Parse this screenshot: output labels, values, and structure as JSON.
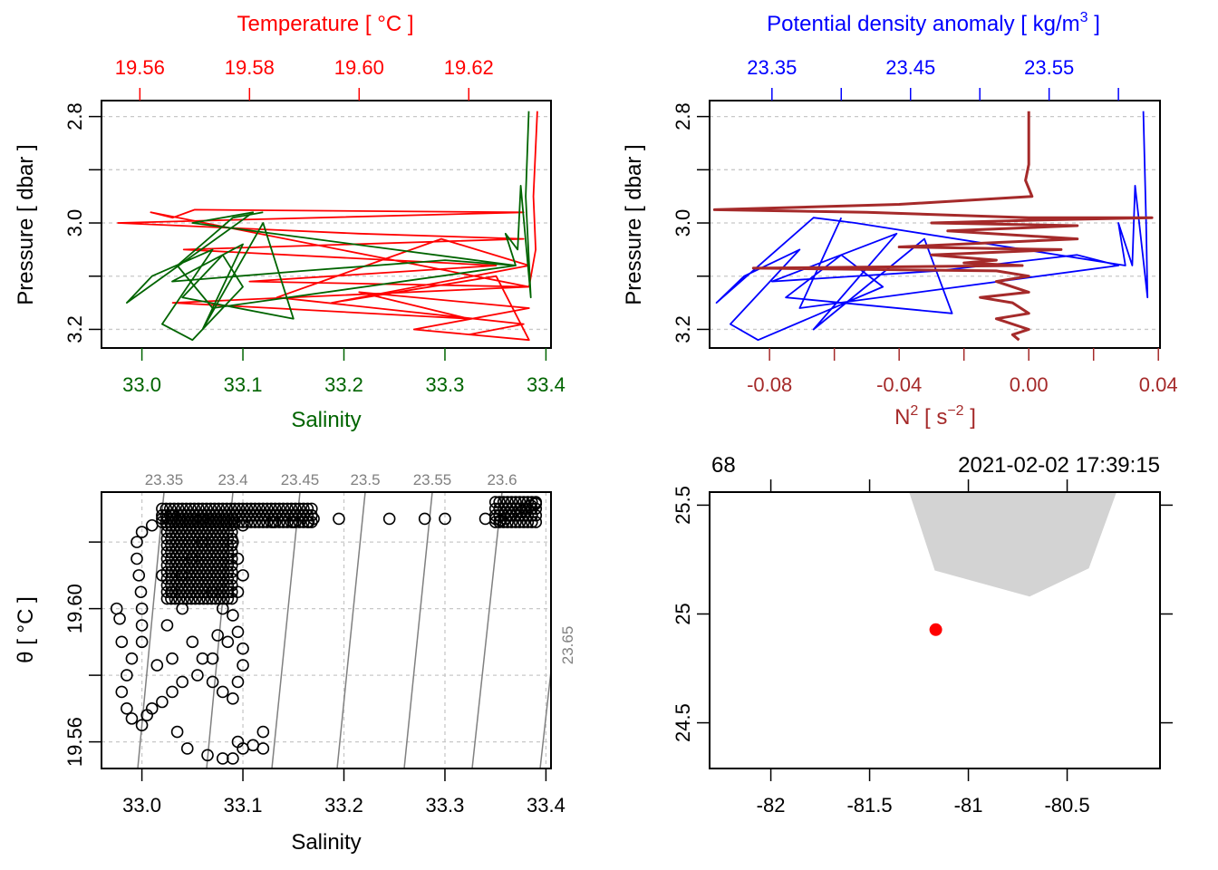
{
  "chart_data": [
    {
      "id": "ts_profile",
      "type": "line",
      "title": "",
      "top_axis": {
        "label": "Temperature [ °C ]",
        "color": "#ff0000",
        "ticks": [
          "19.56",
          "19.58",
          "19.60",
          "19.62"
        ],
        "tick_values": [
          19.56,
          19.58,
          19.6,
          19.62
        ],
        "range": [
          19.553,
          19.635
        ]
      },
      "bottom_axis": {
        "label": "Salinity",
        "color": "#006400",
        "ticks": [
          "33.0",
          "33.1",
          "33.2",
          "33.3",
          "33.4"
        ],
        "tick_values": [
          33.0,
          33.1,
          33.2,
          33.3,
          33.4
        ],
        "range": [
          32.96,
          33.405
        ]
      },
      "left_axis": {
        "label": "Pressure [ dbar ]",
        "ticks": [
          "2.8",
          "",
          "3.0",
          "",
          "3.2"
        ],
        "tick_values": [
          2.8,
          2.9,
          3.0,
          3.1,
          3.2
        ],
        "range": [
          2.77,
          3.235
        ],
        "reversed": true
      },
      "grid": true,
      "series": [
        {
          "name": "Temperature",
          "color": "#ff0000",
          "points": [
            [
              19.6325,
              2.79
            ],
            [
              19.6318,
              2.95
            ],
            [
              19.6322,
              3.05
            ],
            [
              19.631,
              3.12
            ],
            [
              19.562,
              2.98
            ],
            [
              19.566,
              2.99
            ],
            [
              19.57,
              2.975
            ],
            [
              19.63,
              2.98
            ],
            [
              19.556,
              3.0
            ],
            [
              19.6,
              3.02
            ],
            [
              19.63,
              3.03
            ],
            [
              19.568,
              3.05
            ],
            [
              19.625,
              3.08
            ],
            [
              19.58,
              3.11
            ],
            [
              19.631,
              3.12
            ],
            [
              19.566,
              3.15
            ],
            [
              19.62,
              3.18
            ],
            [
              19.6,
              3.13
            ],
            [
              19.631,
              3.16
            ],
            [
              19.61,
              3.2
            ],
            [
              19.631,
              3.22
            ],
            [
              19.625,
              3.1
            ],
            [
              19.595,
              3.15
            ],
            [
              19.631,
              3.08
            ],
            [
              19.615,
              3.03
            ],
            [
              19.585,
              3.14
            ],
            [
              19.63,
              3.19
            ],
            [
              19.62,
              3.21
            ]
          ]
        },
        {
          "name": "Salinity",
          "color": "#006400",
          "points": [
            [
              33.383,
              2.79
            ],
            [
              33.38,
              2.95
            ],
            [
              33.385,
              3.14
            ],
            [
              33.375,
              2.93
            ],
            [
              33.372,
              3.05
            ],
            [
              33.36,
              3.02
            ],
            [
              33.37,
              3.08
            ],
            [
              33.05,
              3.0
            ],
            [
              33.11,
              2.98
            ],
            [
              32.985,
              3.15
            ],
            [
              33.01,
              3.1
            ],
            [
              33.07,
              3.05
            ],
            [
              33.02,
              3.19
            ],
            [
              33.05,
              3.22
            ],
            [
              33.1,
              3.12
            ],
            [
              33.08,
              3.06
            ],
            [
              33.04,
              3.14
            ],
            [
              33.15,
              3.18
            ],
            [
              33.12,
              3.0
            ],
            [
              33.06,
              3.2
            ],
            [
              33.1,
              3.04
            ],
            [
              33.03,
              3.11
            ],
            [
              33.16,
              3.09
            ],
            [
              33.3,
              3.07
            ],
            [
              33.37,
              3.08
            ],
            [
              33.07,
              3.16
            ],
            [
              33.035,
              3.08
            ],
            [
              33.09,
              2.99
            ],
            [
              33.12,
              2.98
            ]
          ]
        }
      ]
    },
    {
      "id": "density_n2_profile",
      "type": "line",
      "title": "",
      "top_axis": {
        "label": "Potential density anomaly [ kg/m^3 ]",
        "color": "#0000ff",
        "ticks": [
          "23.35",
          "",
          "23.45",
          "",
          "23.55",
          ""
        ],
        "tick_values": [
          23.35,
          23.4,
          23.45,
          23.5,
          23.55,
          23.6
        ],
        "range": [
          23.305,
          23.63
        ]
      },
      "bottom_axis": {
        "label": "N^2 [ s^-2 ]",
        "color": "#a52a2a",
        "ticks": [
          "-0.08",
          "",
          "-0.04",
          "",
          "0.00",
          "",
          "0.04"
        ],
        "tick_values": [
          -0.08,
          -0.06,
          -0.04,
          -0.02,
          0.0,
          0.02,
          0.04
        ],
        "range": [
          -0.0985,
          0.0405
        ]
      },
      "left_axis": {
        "label": "Pressure [ dbar ]",
        "ticks": [
          "2.8",
          "",
          "3.0",
          "",
          "3.2"
        ],
        "tick_values": [
          2.8,
          2.9,
          3.0,
          3.1,
          3.2
        ],
        "range": [
          2.77,
          3.235
        ],
        "reversed": true
      },
      "grid": true,
      "series": [
        {
          "name": "Potential density anomaly",
          "color": "#0000ff",
          "points": [
            [
              23.618,
              2.79
            ],
            [
              23.62,
              3.0
            ],
            [
              23.621,
              3.14
            ],
            [
              23.612,
              2.93
            ],
            [
              23.61,
              3.08
            ],
            [
              23.6,
              3.0
            ],
            [
              23.605,
              3.08
            ],
            [
              23.41,
              3.0
            ],
            [
              23.38,
              2.99
            ],
            [
              23.31,
              3.15
            ],
            [
              23.33,
              3.1
            ],
            [
              23.37,
              3.05
            ],
            [
              23.32,
              3.19
            ],
            [
              23.34,
              3.22
            ],
            [
              23.43,
              3.12
            ],
            [
              23.4,
              3.06
            ],
            [
              23.36,
              3.14
            ],
            [
              23.48,
              3.17
            ],
            [
              23.46,
              3.03
            ],
            [
              23.38,
              3.2
            ],
            [
              23.44,
              3.02
            ],
            [
              23.35,
              3.11
            ],
            [
              23.47,
              3.09
            ],
            [
              23.57,
              3.06
            ],
            [
              23.6,
              3.08
            ],
            [
              23.37,
              3.16
            ],
            [
              23.4,
              2.99
            ]
          ]
        },
        {
          "name": "N2",
          "color": "#a52a2a",
          "points": [
            [
              0.0,
              2.79
            ],
            [
              0.0,
              2.89
            ],
            [
              -0.001,
              2.92
            ],
            [
              0.001,
              2.95
            ],
            [
              -0.04,
              2.965
            ],
            [
              -0.097,
              2.975
            ],
            [
              -0.05,
              2.98
            ],
            [
              0.0,
              2.99
            ],
            [
              0.038,
              2.99
            ],
            [
              0.0,
              2.995
            ],
            [
              -0.03,
              3.0
            ],
            [
              0.015,
              3.005
            ],
            [
              -0.025,
              3.015
            ],
            [
              0.015,
              3.03
            ],
            [
              -0.04,
              3.045
            ],
            [
              0.01,
              3.05
            ],
            [
              -0.03,
              3.06
            ],
            [
              -0.01,
              3.07
            ],
            [
              -0.02,
              3.075
            ],
            [
              -0.002,
              3.08
            ],
            [
              -0.085,
              3.085
            ],
            [
              -0.01,
              3.09
            ],
            [
              0.0,
              3.1
            ],
            [
              -0.01,
              3.11
            ],
            [
              0.0,
              3.13
            ],
            [
              -0.015,
              3.14
            ],
            [
              -0.005,
              3.15
            ],
            [
              0.0,
              3.17
            ],
            [
              -0.01,
              3.18
            ],
            [
              0.0,
              3.2
            ],
            [
              -0.005,
              3.21
            ],
            [
              -0.003,
              3.22
            ]
          ]
        }
      ]
    },
    {
      "id": "ts_diagram",
      "type": "scatter",
      "title": "",
      "xlabel": "Salinity",
      "ylabel": "θ [ °C ]",
      "x_ticks": [
        "33.0",
        "33.1",
        "33.2",
        "33.3",
        "33.4"
      ],
      "x_tick_values": [
        33.0,
        33.1,
        33.2,
        33.3,
        33.4
      ],
      "y_ticks": [
        "19.56",
        "",
        "19.60",
        ""
      ],
      "y_tick_values": [
        19.56,
        19.58,
        19.6,
        19.62
      ],
      "xlim": [
        32.96,
        33.405
      ],
      "ylim": [
        19.552,
        19.635
      ],
      "grid": true,
      "isopycnals": {
        "color": "#808080",
        "labels": [
          "23.35",
          "23.4",
          "23.45",
          "23.5",
          "23.55",
          "23.6",
          "23.65"
        ],
        "values": [
          23.35,
          23.4,
          23.45,
          23.5,
          23.55,
          23.6,
          23.65
        ]
      },
      "series": [
        {
          "name": "CTD samples",
          "marker": "open-circle",
          "color": "#000000",
          "points": [
            [
              33.375,
              19.629
            ],
            [
              33.38,
              19.63
            ],
            [
              33.385,
              19.631
            ],
            [
              33.39,
              19.6315
            ],
            [
              33.35,
              19.627
            ],
            [
              33.355,
              19.6265
            ],
            [
              33.36,
              19.627
            ],
            [
              33.365,
              19.628
            ],
            [
              33.37,
              19.628
            ],
            [
              33.34,
              19.627
            ],
            [
              33.3,
              19.627
            ],
            [
              33.28,
              19.627
            ],
            [
              33.245,
              19.627
            ],
            [
              33.195,
              19.627
            ],
            [
              33.17,
              19.627
            ],
            [
              33.165,
              19.626
            ],
            [
              33.15,
              19.626
            ],
            [
              33.13,
              19.626
            ],
            [
              33.1,
              19.625
            ],
            [
              33.09,
              19.627
            ],
            [
              33.06,
              19.627
            ],
            [
              33.03,
              19.628
            ],
            [
              33.02,
              19.627
            ],
            [
              33.01,
              19.625
            ],
            [
              33.0,
              19.623
            ],
            [
              32.995,
              19.62
            ],
            [
              32.995,
              19.615
            ],
            [
              32.997,
              19.61
            ],
            [
              32.999,
              19.605
            ],
            [
              33.0,
              19.6
            ],
            [
              33.0,
              19.595
            ],
            [
              33.0,
              19.59
            ],
            [
              32.99,
              19.585
            ],
            [
              32.985,
              19.58
            ],
            [
              32.98,
              19.575
            ],
            [
              32.985,
              19.57
            ],
            [
              32.99,
              19.567
            ],
            [
              33.0,
              19.565
            ],
            [
              33.01,
              19.57
            ],
            [
              33.02,
              19.572
            ],
            [
              33.03,
              19.575
            ],
            [
              33.04,
              19.578
            ],
            [
              33.055,
              19.58
            ],
            [
              33.07,
              19.578
            ],
            [
              33.08,
              19.575
            ],
            [
              33.09,
              19.573
            ],
            [
              33.095,
              19.578
            ],
            [
              33.1,
              19.583
            ],
            [
              33.1,
              19.588
            ],
            [
              33.095,
              19.593
            ],
            [
              33.09,
              19.598
            ],
            [
              33.095,
              19.605
            ],
            [
              33.1,
              19.61
            ],
            [
              33.095,
              19.615
            ],
            [
              33.09,
              19.62
            ],
            [
              32.975,
              19.6
            ],
            [
              32.978,
              19.597
            ],
            [
              32.98,
              19.59
            ],
            [
              33.005,
              19.568
            ],
            [
              33.035,
              19.563
            ],
            [
              33.045,
              19.558
            ],
            [
              33.065,
              19.556
            ],
            [
              33.08,
              19.555
            ],
            [
              33.09,
              19.555
            ],
            [
              33.095,
              19.56
            ],
            [
              33.1,
              19.558
            ],
            [
              33.11,
              19.559
            ],
            [
              33.12,
              19.563
            ],
            [
              33.12,
              19.558
            ],
            [
              33.015,
              19.583
            ],
            [
              33.025,
              19.595
            ],
            [
              33.03,
              19.605
            ],
            [
              33.04,
              19.61
            ],
            [
              33.05,
              19.615
            ],
            [
              33.06,
              19.62
            ],
            [
              33.07,
              19.605
            ],
            [
              33.08,
              19.6
            ],
            [
              33.05,
              19.59
            ],
            [
              33.06,
              19.585
            ],
            [
              33.04,
              19.6
            ],
            [
              33.075,
              19.592
            ],
            [
              33.085,
              19.59
            ],
            [
              33.07,
              19.585
            ],
            [
              33.03,
              19.585
            ],
            [
              33.02,
              19.61
            ]
          ]
        }
      ]
    },
    {
      "id": "station_map",
      "type": "scatter",
      "title": "",
      "top_labels": {
        "left": "68",
        "right": "2021-02-02 17:39:15"
      },
      "x_ticks": [
        "-82",
        "-81.5",
        "-81",
        "-80.5"
      ],
      "x_tick_values": [
        -82.0,
        -81.5,
        -81.0,
        -80.5
      ],
      "y_ticks": [
        "24.5",
        "25",
        "25.5"
      ],
      "y_tick_values": [
        24.5,
        25.0,
        25.5
      ],
      "xlim": [
        -82.31,
        -80.03
      ],
      "ylim": [
        24.29,
        25.56
      ],
      "land": {
        "color": "#d3d3d3",
        "polygon": [
          [
            -81.3,
            25.56
          ],
          [
            -81.17,
            25.2
          ],
          [
            -80.69,
            25.08
          ],
          [
            -80.39,
            25.21
          ],
          [
            -80.25,
            25.56
          ]
        ]
      },
      "series": [
        {
          "name": "Station",
          "marker": "filled-circle",
          "color": "#ff0000",
          "points": [
            [
              -81.165,
              24.928
            ]
          ]
        }
      ]
    }
  ]
}
